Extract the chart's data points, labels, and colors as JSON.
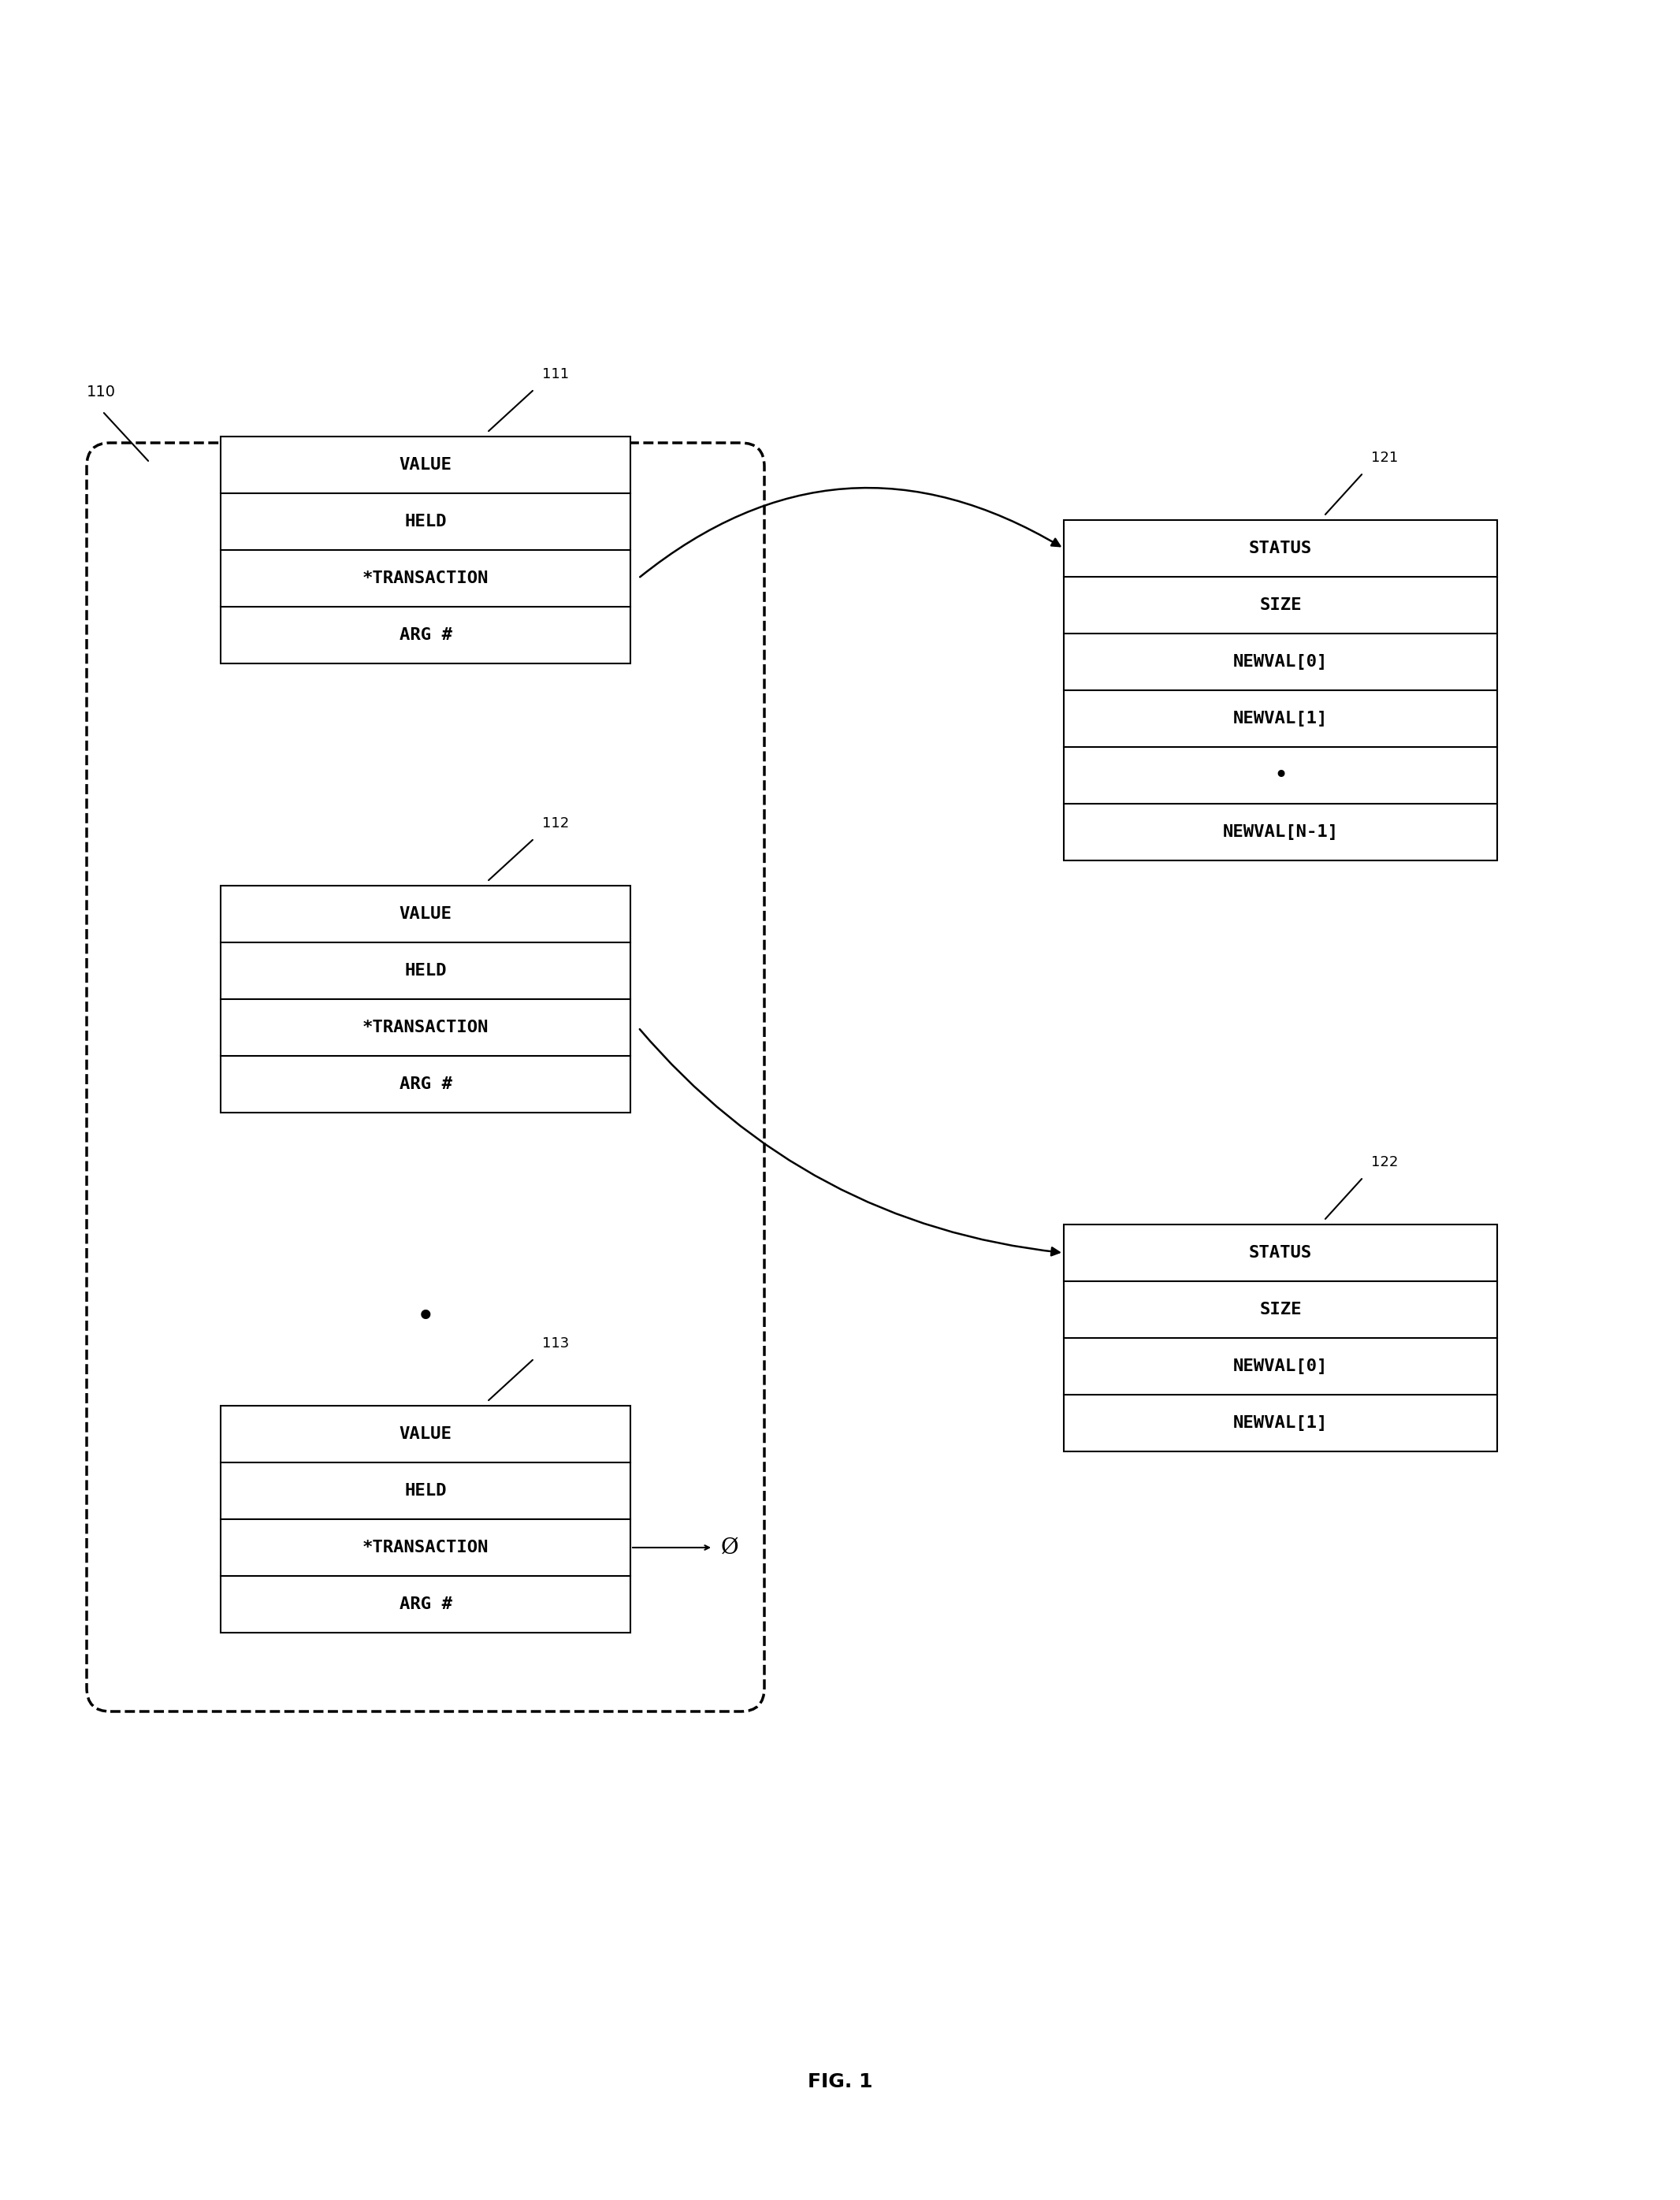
{
  "bg_color": "#ffffff",
  "fig_title": "FIG. 1",
  "label_110": "110",
  "label_111": "111",
  "label_112": "112",
  "label_113": "113",
  "label_121": "121",
  "label_122": "122",
  "box111_fields": [
    "VALUE",
    "HELD",
    "*TRANSACTION",
    "ARG #"
  ],
  "box112_fields": [
    "VALUE",
    "HELD",
    "*TRANSACTION",
    "ARG #"
  ],
  "box113_fields": [
    "VALUE",
    "HELD",
    "*TRANSACTION",
    "ARG #"
  ],
  "box121_fields": [
    "STATUS",
    "SIZE",
    "NEWVAL[0]",
    "NEWVAL[1]",
    "•",
    "NEWVAL[N-1]"
  ],
  "box122_fields": [
    "STATUS",
    "SIZE",
    "NEWVAL[0]",
    "NEWVAL[1]"
  ],
  "null_symbol": "Ø",
  "font_size_label": 13,
  "font_size_field": 16,
  "font_size_fig": 18
}
